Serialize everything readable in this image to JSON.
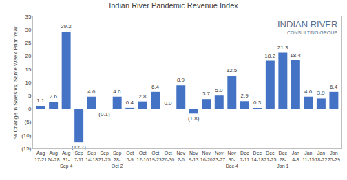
{
  "chart_data": {
    "type": "bar",
    "title": "Indian River Pandemic Revenue Index",
    "y_label": "% Change in Sales vs. Same Week Prior Year",
    "annotations": [
      "INDIAN RIVER",
      "CONSULTING GROUP"
    ],
    "categories": [
      "Aug 17-21",
      "Aug 24-28",
      "Aug 31-Sep 4",
      "Sep 7-11",
      "Sep 14-18",
      "Sep 21-25",
      "Sep 28-Oct 2",
      "Oct 5-9",
      "Oct 12-16",
      "Oct 19-23",
      "Oct 26-30",
      "Nov 2-6",
      "Nov 9-13",
      "Nov 16-20",
      "Nov 23-27",
      "Nov 30-Dec 4",
      "Dec 7-11",
      "Dec 14-18",
      "Dec 21-25",
      "Dec 28-Jan 1",
      "Jan 4-8",
      "Jan 11-15",
      "Jan 18-22",
      "Jan 25-29"
    ],
    "values": [
      1.1,
      2.6,
      29.2,
      -12.7,
      4.6,
      -0.1,
      4.6,
      0.4,
      2.8,
      6.4,
      0.0,
      8.9,
      -1.8,
      3.7,
      5.0,
      12.5,
      2.9,
      0.3,
      18.2,
      21.3,
      18.4,
      4.6,
      3.9,
      6.4
    ],
    "value_labels": [
      "1.1",
      "2.6",
      "29.2",
      "(12.7)",
      "4.6",
      "(0.1)",
      "4.6",
      "0.4",
      "2.8",
      "6.4",
      "0.0",
      "8.9",
      "(1.8)",
      "3.7",
      "5.0",
      "12.5",
      "2.9",
      "0.3",
      "18.2",
      "21.3",
      "18.4",
      "4.6",
      "3.9",
      "6.4"
    ],
    "data_labels": true,
    "color": "#4472c4",
    "ylim": [
      -15,
      35
    ],
    "yticks": [
      {
        "value": -15,
        "label": "(15)"
      },
      {
        "value": -10,
        "label": "(10)"
      },
      {
        "value": -5,
        "label": "(5)"
      },
      0,
      5,
      10,
      15,
      20,
      25,
      30,
      35
    ],
    "grid": false
  }
}
